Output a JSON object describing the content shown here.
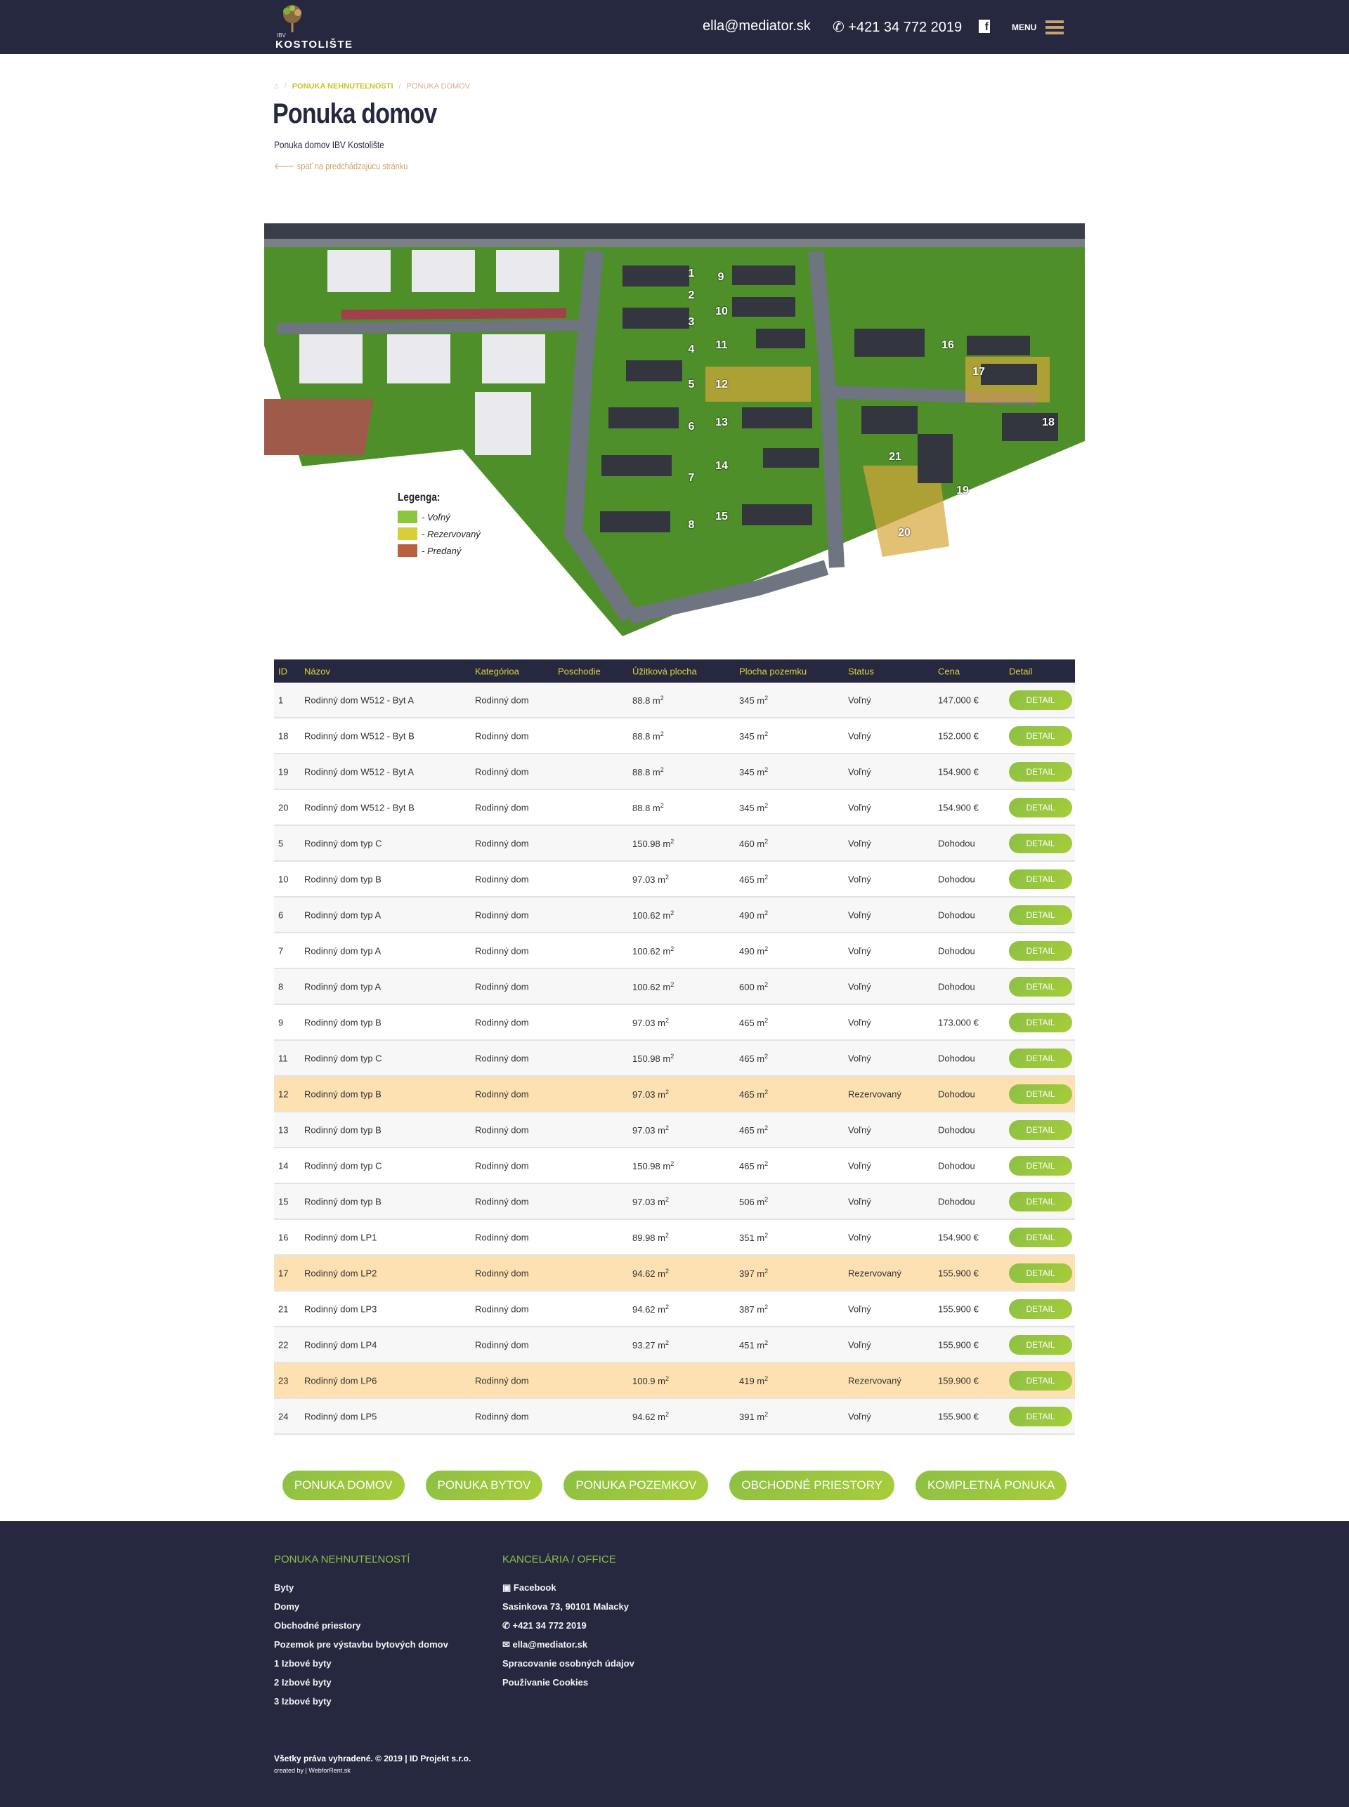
{
  "header": {
    "logo_small": "IBV",
    "logo_text": "KOSTOLIŠTE",
    "email": "ella@mediator.sk",
    "phone": "+421 34 772 2019",
    "menu_label": "MENU"
  },
  "breadcrumb": {
    "items": [
      "PONUKA NEHNUTEĽNOSTI",
      "PONUKA DOMOV"
    ]
  },
  "page": {
    "title": "Ponuka domov",
    "subtitle": "Ponuka domov IBV Kostolište",
    "back_link": "spať na predchádzajúcu stránku"
  },
  "map": {
    "plots": [
      "1",
      "2",
      "3",
      "4",
      "5",
      "6",
      "7",
      "8",
      "9",
      "10",
      "11",
      "12",
      "13",
      "14",
      "15",
      "16",
      "17",
      "18",
      "19",
      "20",
      "21"
    ],
    "legend": {
      "title": "Legenga:",
      "items": [
        {
          "label": "- Voľný",
          "color": "#8cc63f"
        },
        {
          "label": "- Rezervovaný",
          "color": "#d6cf3a"
        },
        {
          "label": "- Predaný",
          "color": "#b9603f"
        }
      ]
    }
  },
  "table": {
    "headers": [
      "ID",
      "Názov",
      "Kategórioa",
      "Poschodie",
      "Úžitková plocha",
      "Plocha pozemku",
      "Status",
      "Cena",
      "Detail"
    ],
    "detail_label": "DETAIL",
    "rows": [
      {
        "id": "1",
        "name": "Rodinný dom W512 - Byt A",
        "cat": "Rodinný dom",
        "floor": "",
        "area": "88.8 m",
        "plot": "345 m",
        "status": "Voľný",
        "price": "147.000 €"
      },
      {
        "id": "18",
        "name": "Rodinný dom W512 - Byt B",
        "cat": "Rodinný dom",
        "floor": "",
        "area": "88.8 m",
        "plot": "345 m",
        "status": "Voľný",
        "price": "152.000 €"
      },
      {
        "id": "19",
        "name": "Rodinný dom W512 - Byt A",
        "cat": "Rodinný dom",
        "floor": "",
        "area": "88.8 m",
        "plot": "345 m",
        "status": "Voľný",
        "price": "154.900 €"
      },
      {
        "id": "20",
        "name": "Rodinný dom W512 - Byt B",
        "cat": "Rodinný dom",
        "floor": "",
        "area": "88.8 m",
        "plot": "345 m",
        "status": "Voľný",
        "price": "154.900 €"
      },
      {
        "id": "5",
        "name": "Rodinný dom typ C",
        "cat": "Rodinný dom",
        "floor": "",
        "area": "150.98 m",
        "plot": "460 m",
        "status": "Voľný",
        "price": "Dohodou"
      },
      {
        "id": "10",
        "name": "Rodinný dom typ B",
        "cat": "Rodinný dom",
        "floor": "",
        "area": "97.03 m",
        "plot": "465 m",
        "status": "Voľný",
        "price": "Dohodou"
      },
      {
        "id": "6",
        "name": "Rodinný dom typ A",
        "cat": "Rodinný dom",
        "floor": "",
        "area": "100.62 m",
        "plot": "490 m",
        "status": "Voľný",
        "price": "Dohodou"
      },
      {
        "id": "7",
        "name": "Rodinný dom typ A",
        "cat": "Rodinný dom",
        "floor": "",
        "area": "100.62 m",
        "plot": "490 m",
        "status": "Voľný",
        "price": "Dohodou"
      },
      {
        "id": "8",
        "name": "Rodinný dom typ A",
        "cat": "Rodinný dom",
        "floor": "",
        "area": "100.62 m",
        "plot": "600 m",
        "status": "Voľný",
        "price": "Dohodou"
      },
      {
        "id": "9",
        "name": "Rodinný dom typ B",
        "cat": "Rodinný dom",
        "floor": "",
        "area": "97.03 m",
        "plot": "465 m",
        "status": "Voľný",
        "price": "173.000 €"
      },
      {
        "id": "11",
        "name": "Rodinný dom typ C",
        "cat": "Rodinný dom",
        "floor": "",
        "area": "150.98 m",
        "plot": "465 m",
        "status": "Voľný",
        "price": "Dohodou"
      },
      {
        "id": "12",
        "name": "Rodinný dom typ B",
        "cat": "Rodinný dom",
        "floor": "",
        "area": "97.03 m",
        "plot": "465 m",
        "status": "Rezervovaný",
        "price": "Dohodou"
      },
      {
        "id": "13",
        "name": "Rodinný dom typ B",
        "cat": "Rodinný dom",
        "floor": "",
        "area": "97.03 m",
        "plot": "465 m",
        "status": "Voľný",
        "price": "Dohodou"
      },
      {
        "id": "14",
        "name": "Rodinný dom typ C",
        "cat": "Rodinný dom",
        "floor": "",
        "area": "150.98 m",
        "plot": "465 m",
        "status": "Voľný",
        "price": "Dohodou"
      },
      {
        "id": "15",
        "name": "Rodinný dom typ B",
        "cat": "Rodinný dom",
        "floor": "",
        "area": "97.03 m",
        "plot": "506 m",
        "status": "Voľný",
        "price": "Dohodou"
      },
      {
        "id": "16",
        "name": "Rodinný dom LP1",
        "cat": "Rodinný dom",
        "floor": "",
        "area": "89.98 m",
        "plot": "351 m",
        "status": "Voľný",
        "price": "154.900 €"
      },
      {
        "id": "17",
        "name": "Rodinný dom LP2",
        "cat": "Rodinný dom",
        "floor": "",
        "area": "94.62 m",
        "plot": "397 m",
        "status": "Rezervovaný",
        "price": "155.900 €"
      },
      {
        "id": "21",
        "name": "Rodinný dom LP3",
        "cat": "Rodinný dom",
        "floor": "",
        "area": "94.62 m",
        "plot": "387 m",
        "status": "Voľný",
        "price": "155.900 €"
      },
      {
        "id": "22",
        "name": "Rodinný dom LP4",
        "cat": "Rodinný dom",
        "floor": "",
        "area": "93.27 m",
        "plot": "451 m",
        "status": "Voľný",
        "price": "155.900 €"
      },
      {
        "id": "23",
        "name": "Rodinný dom LP6",
        "cat": "Rodinný dom",
        "floor": "",
        "area": "100.9 m",
        "plot": "419 m",
        "status": "Rezervovaný",
        "price": "159.900 €"
      },
      {
        "id": "24",
        "name": "Rodinný dom LP5",
        "cat": "Rodinný dom",
        "floor": "",
        "area": "94.62 m",
        "plot": "391 m",
        "status": "Voľný",
        "price": "155.900 €"
      }
    ]
  },
  "nav_buttons": [
    "PONUKA DOMOV",
    "PONUKA BYTOV",
    "PONUKA POZEMKOV",
    "OBCHODNÉ PRIESTORY",
    "KOMPLETNÁ PONUKA"
  ],
  "footer": {
    "col1": {
      "title": "PONUKA NEHNUTEĽNOSTÍ",
      "items": [
        "Byty",
        "Domy",
        "Obchodné priestory",
        "Pozemok pre výstavbu bytových domov",
        "1 Izbové byty",
        "2 Izbové byty",
        "3 Izbové byty"
      ]
    },
    "col2": {
      "title": "KANCELÁRIA / OFFICE",
      "items": [
        "Facebook",
        "Sasinkova 73, 90101 Malacky",
        "+421 34 772 2019",
        "ella@mediator.sk",
        "Spracovanie osobných údajov",
        "Používanie Cookies"
      ]
    },
    "copyright": "Všetky práva vyhradené. © 2019 | ID Projekt s.r.o.",
    "created": "created by | WebforRent.sk"
  },
  "colors": {
    "navy": "#262840",
    "green": "#8cc044",
    "reserved_row": "#fde1b2",
    "gold": "#c9a26b"
  }
}
